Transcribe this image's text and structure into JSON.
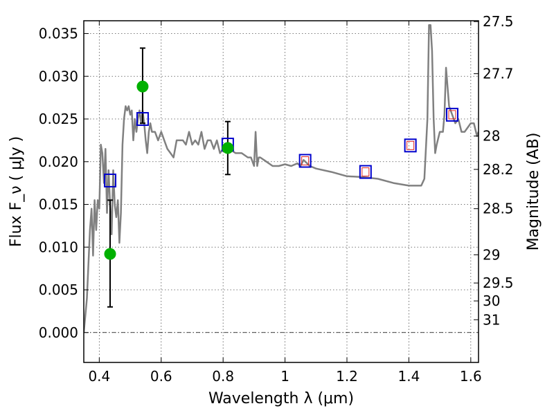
{
  "chart_data": {
    "type": "scatter",
    "xlabel": "Wavelength  λ (μm)",
    "ylabel": "Flux  F_ν  ( μJy )",
    "y2label": "Magnitude (AB)",
    "xlim": [
      0.35,
      1.625
    ],
    "ylim": [
      -0.0035,
      0.0365
    ],
    "x_ticks": [
      0.4,
      0.6,
      0.8,
      1.0,
      1.2,
      1.4,
      1.6
    ],
    "x_tick_labels": [
      "0.4",
      "0.6",
      "0.8",
      "1",
      "1.2",
      "1.4",
      "1.6"
    ],
    "y_ticks": [
      0.0,
      0.005,
      0.01,
      0.015,
      0.02,
      0.025,
      0.03,
      0.035
    ],
    "y_tick_labels": [
      "0.000",
      "0.005",
      "0.010",
      "0.015",
      "0.020",
      "0.025",
      "0.030",
      "0.035"
    ],
    "y2_ticks": [
      {
        "label": "27.5",
        "flux": 0.0364
      },
      {
        "label": "27.7",
        "flux": 0.0303
      },
      {
        "label": "28",
        "flux": 0.023
      },
      {
        "label": "28.2",
        "flux": 0.0191
      },
      {
        "label": "28.5",
        "flux": 0.0145
      },
      {
        "label": "29",
        "flux": 0.0091
      },
      {
        "label": "29.5",
        "flux": 0.0058
      },
      {
        "label": "30",
        "flux": 0.0037
      },
      {
        "label": "31",
        "flux": 0.0015
      }
    ],
    "grid": true,
    "zero_line": true,
    "series": [
      {
        "kind": "model-spectrum",
        "color": "#808080",
        "x": [
          0.35,
          0.36,
          0.37,
          0.375,
          0.38,
          0.385,
          0.39,
          0.395,
          0.4,
          0.405,
          0.41,
          0.415,
          0.42,
          0.425,
          0.43,
          0.435,
          0.44,
          0.445,
          0.45,
          0.455,
          0.46,
          0.465,
          0.47,
          0.475,
          0.48,
          0.485,
          0.49,
          0.495,
          0.5,
          0.505,
          0.51,
          0.515,
          0.52,
          0.525,
          0.53,
          0.535,
          0.54,
          0.545,
          0.55,
          0.555,
          0.56,
          0.565,
          0.57,
          0.58,
          0.59,
          0.6,
          0.605,
          0.61,
          0.62,
          0.63,
          0.64,
          0.65,
          0.66,
          0.67,
          0.68,
          0.69,
          0.7,
          0.71,
          0.72,
          0.73,
          0.74,
          0.75,
          0.76,
          0.77,
          0.78,
          0.79,
          0.8,
          0.82,
          0.84,
          0.86,
          0.88,
          0.89,
          0.9,
          0.905,
          0.91,
          0.915,
          0.92,
          0.94,
          0.96,
          0.98,
          1.0,
          1.02,
          1.04,
          1.05,
          1.06,
          1.08,
          1.1,
          1.15,
          1.2,
          1.25,
          1.3,
          1.35,
          1.4,
          1.43,
          1.44,
          1.45,
          1.46,
          1.465,
          1.47,
          1.475,
          1.48,
          1.485,
          1.49,
          1.5,
          1.51,
          1.515,
          1.52,
          1.53,
          1.54,
          1.55,
          1.56,
          1.57,
          1.58,
          1.59,
          1.6,
          1.61,
          1.62,
          1.625
        ],
        "y": [
          0.0,
          0.004,
          0.012,
          0.0145,
          0.009,
          0.0155,
          0.012,
          0.0155,
          0.0145,
          0.022,
          0.021,
          0.0175,
          0.0215,
          0.014,
          0.019,
          0.015,
          0.0115,
          0.019,
          0.015,
          0.0135,
          0.0155,
          0.0105,
          0.014,
          0.022,
          0.025,
          0.0265,
          0.026,
          0.0265,
          0.0255,
          0.026,
          0.0225,
          0.025,
          0.0235,
          0.025,
          0.026,
          0.0245,
          0.026,
          0.0245,
          0.0225,
          0.021,
          0.0235,
          0.0245,
          0.0235,
          0.0235,
          0.0225,
          0.0235,
          0.023,
          0.0225,
          0.0215,
          0.021,
          0.0205,
          0.0225,
          0.0225,
          0.0225,
          0.022,
          0.0235,
          0.022,
          0.0225,
          0.022,
          0.0235,
          0.0215,
          0.0225,
          0.0225,
          0.0215,
          0.0225,
          0.021,
          0.0215,
          0.0215,
          0.021,
          0.021,
          0.0205,
          0.0205,
          0.0195,
          0.0235,
          0.0195,
          0.0205,
          0.0205,
          0.02,
          0.0195,
          0.0195,
          0.0197,
          0.0195,
          0.0198,
          0.0195,
          0.0202,
          0.0195,
          0.0192,
          0.0188,
          0.0183,
          0.0182,
          0.018,
          0.0175,
          0.0172,
          0.0172,
          0.0172,
          0.018,
          0.025,
          0.036,
          0.036,
          0.033,
          0.025,
          0.021,
          0.022,
          0.0235,
          0.0235,
          0.0255,
          0.031,
          0.0265,
          0.0255,
          0.0245,
          0.025,
          0.0235,
          0.0235,
          0.024,
          0.0245,
          0.0245,
          0.023,
          0.0235
        ]
      },
      {
        "kind": "observed-photometry",
        "color": "#00b000",
        "points": [
          {
            "x": 0.435,
            "y": 0.0092,
            "err_low": 0.003,
            "err_high": 0.0155
          },
          {
            "x": 0.54,
            "y": 0.0288,
            "err_low": 0.0245,
            "err_high": 0.0333
          },
          {
            "x": 0.815,
            "y": 0.0216,
            "err_low": 0.0185,
            "err_high": 0.0247
          }
        ]
      },
      {
        "kind": "model-photometry",
        "color": "#0000cc",
        "points": [
          {
            "x": 0.435,
            "y": 0.0178
          },
          {
            "x": 0.54,
            "y": 0.025
          },
          {
            "x": 0.815,
            "y": 0.022
          },
          {
            "x": 1.065,
            "y": 0.0201
          },
          {
            "x": 1.26,
            "y": 0.0188
          },
          {
            "x": 1.405,
            "y": 0.0219
          },
          {
            "x": 1.54,
            "y": 0.0255
          }
        ]
      },
      {
        "kind": "model-photometry-inner",
        "color": "#dd2222",
        "points": [
          {
            "x": 1.065,
            "y": 0.0201
          },
          {
            "x": 1.26,
            "y": 0.0188
          },
          {
            "x": 1.405,
            "y": 0.0219
          },
          {
            "x": 1.54,
            "y": 0.0255
          }
        ]
      }
    ]
  }
}
